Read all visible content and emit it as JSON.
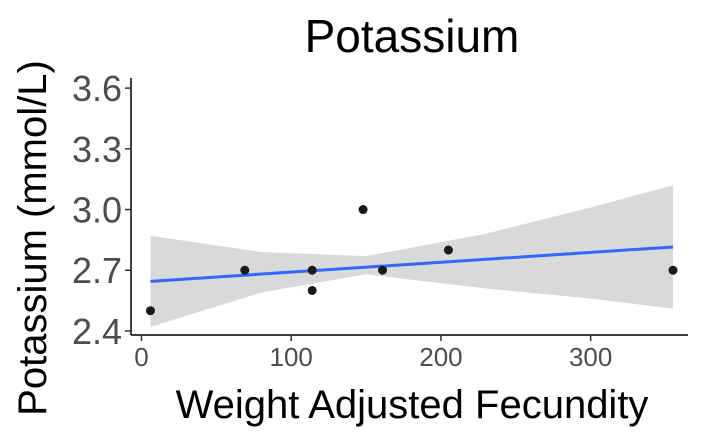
{
  "chart_data": {
    "type": "scatter",
    "title": "Potassium",
    "xlabel": "Weight Adjusted Fecundity",
    "ylabel": "Potassium (mmol/L)",
    "xlim": [
      -7,
      365
    ],
    "ylim": [
      2.38,
      3.65
    ],
    "x_ticks": [
      0,
      100,
      200,
      300
    ],
    "y_ticks": [
      2.4,
      2.7,
      3.0,
      3.3,
      3.6
    ],
    "y_tick_labels": [
      "2.4",
      "2.7",
      "3.0",
      "3.3",
      "3.6"
    ],
    "grid": false,
    "points": [
      {
        "x": 6,
        "y": 2.5
      },
      {
        "x": 69,
        "y": 2.7
      },
      {
        "x": 114,
        "y": 2.7
      },
      {
        "x": 114,
        "y": 2.6
      },
      {
        "x": 148,
        "y": 3.0
      },
      {
        "x": 161,
        "y": 2.7
      },
      {
        "x": 205,
        "y": 2.8
      },
      {
        "x": 355,
        "y": 2.7
      }
    ],
    "trend_line": {
      "x": [
        6,
        355
      ],
      "y": [
        2.645,
        2.815
      ]
    },
    "confidence_band": {
      "x": [
        6,
        80,
        150,
        230,
        300,
        355
      ],
      "upper": [
        2.87,
        2.79,
        2.77,
        2.88,
        3.01,
        3.12
      ],
      "lower": [
        2.42,
        2.59,
        2.68,
        2.61,
        2.56,
        2.51
      ]
    },
    "colors": {
      "points": "#1a1a1a",
      "trend_line": "#3366ff",
      "confidence_band": "#d9d9d9"
    }
  }
}
